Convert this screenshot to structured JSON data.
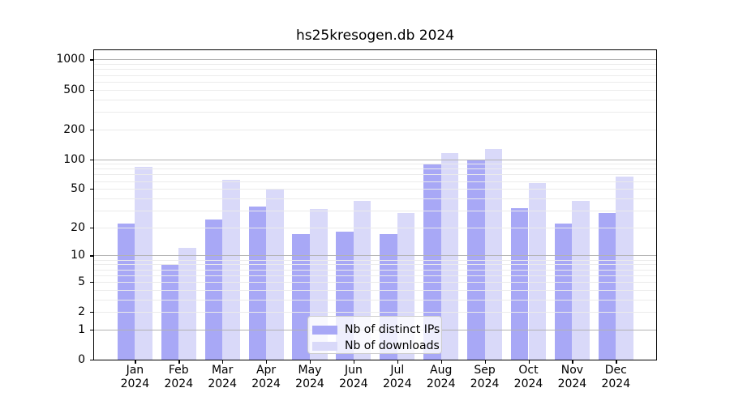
{
  "chart_data": {
    "type": "bar",
    "title": "hs25kresogen.db 2024",
    "yscale": "log1p",
    "ylim": [
      0,
      1250
    ],
    "grid": true,
    "legend_position": "lower center",
    "categories": [
      "Jan",
      "Feb",
      "Mar",
      "Apr",
      "May",
      "Jun",
      "Jul",
      "Aug",
      "Sep",
      "Oct",
      "Nov",
      "Dec"
    ],
    "x_year_label": "2024",
    "yticks": [
      1000,
      500,
      200,
      100,
      50,
      20,
      10,
      5,
      2,
      1,
      0
    ],
    "series": [
      {
        "name": "Nb of distinct IPs",
        "color": "#a8a8f6",
        "values": [
          22,
          8,
          24,
          33,
          17,
          18,
          17,
          89,
          97,
          32,
          22,
          28
        ]
      },
      {
        "name": "Nb of downloads",
        "color": "#d9d9f9",
        "values": [
          83,
          12,
          62,
          50,
          31,
          38,
          28,
          115,
          126,
          57,
          38,
          67
        ]
      }
    ]
  }
}
